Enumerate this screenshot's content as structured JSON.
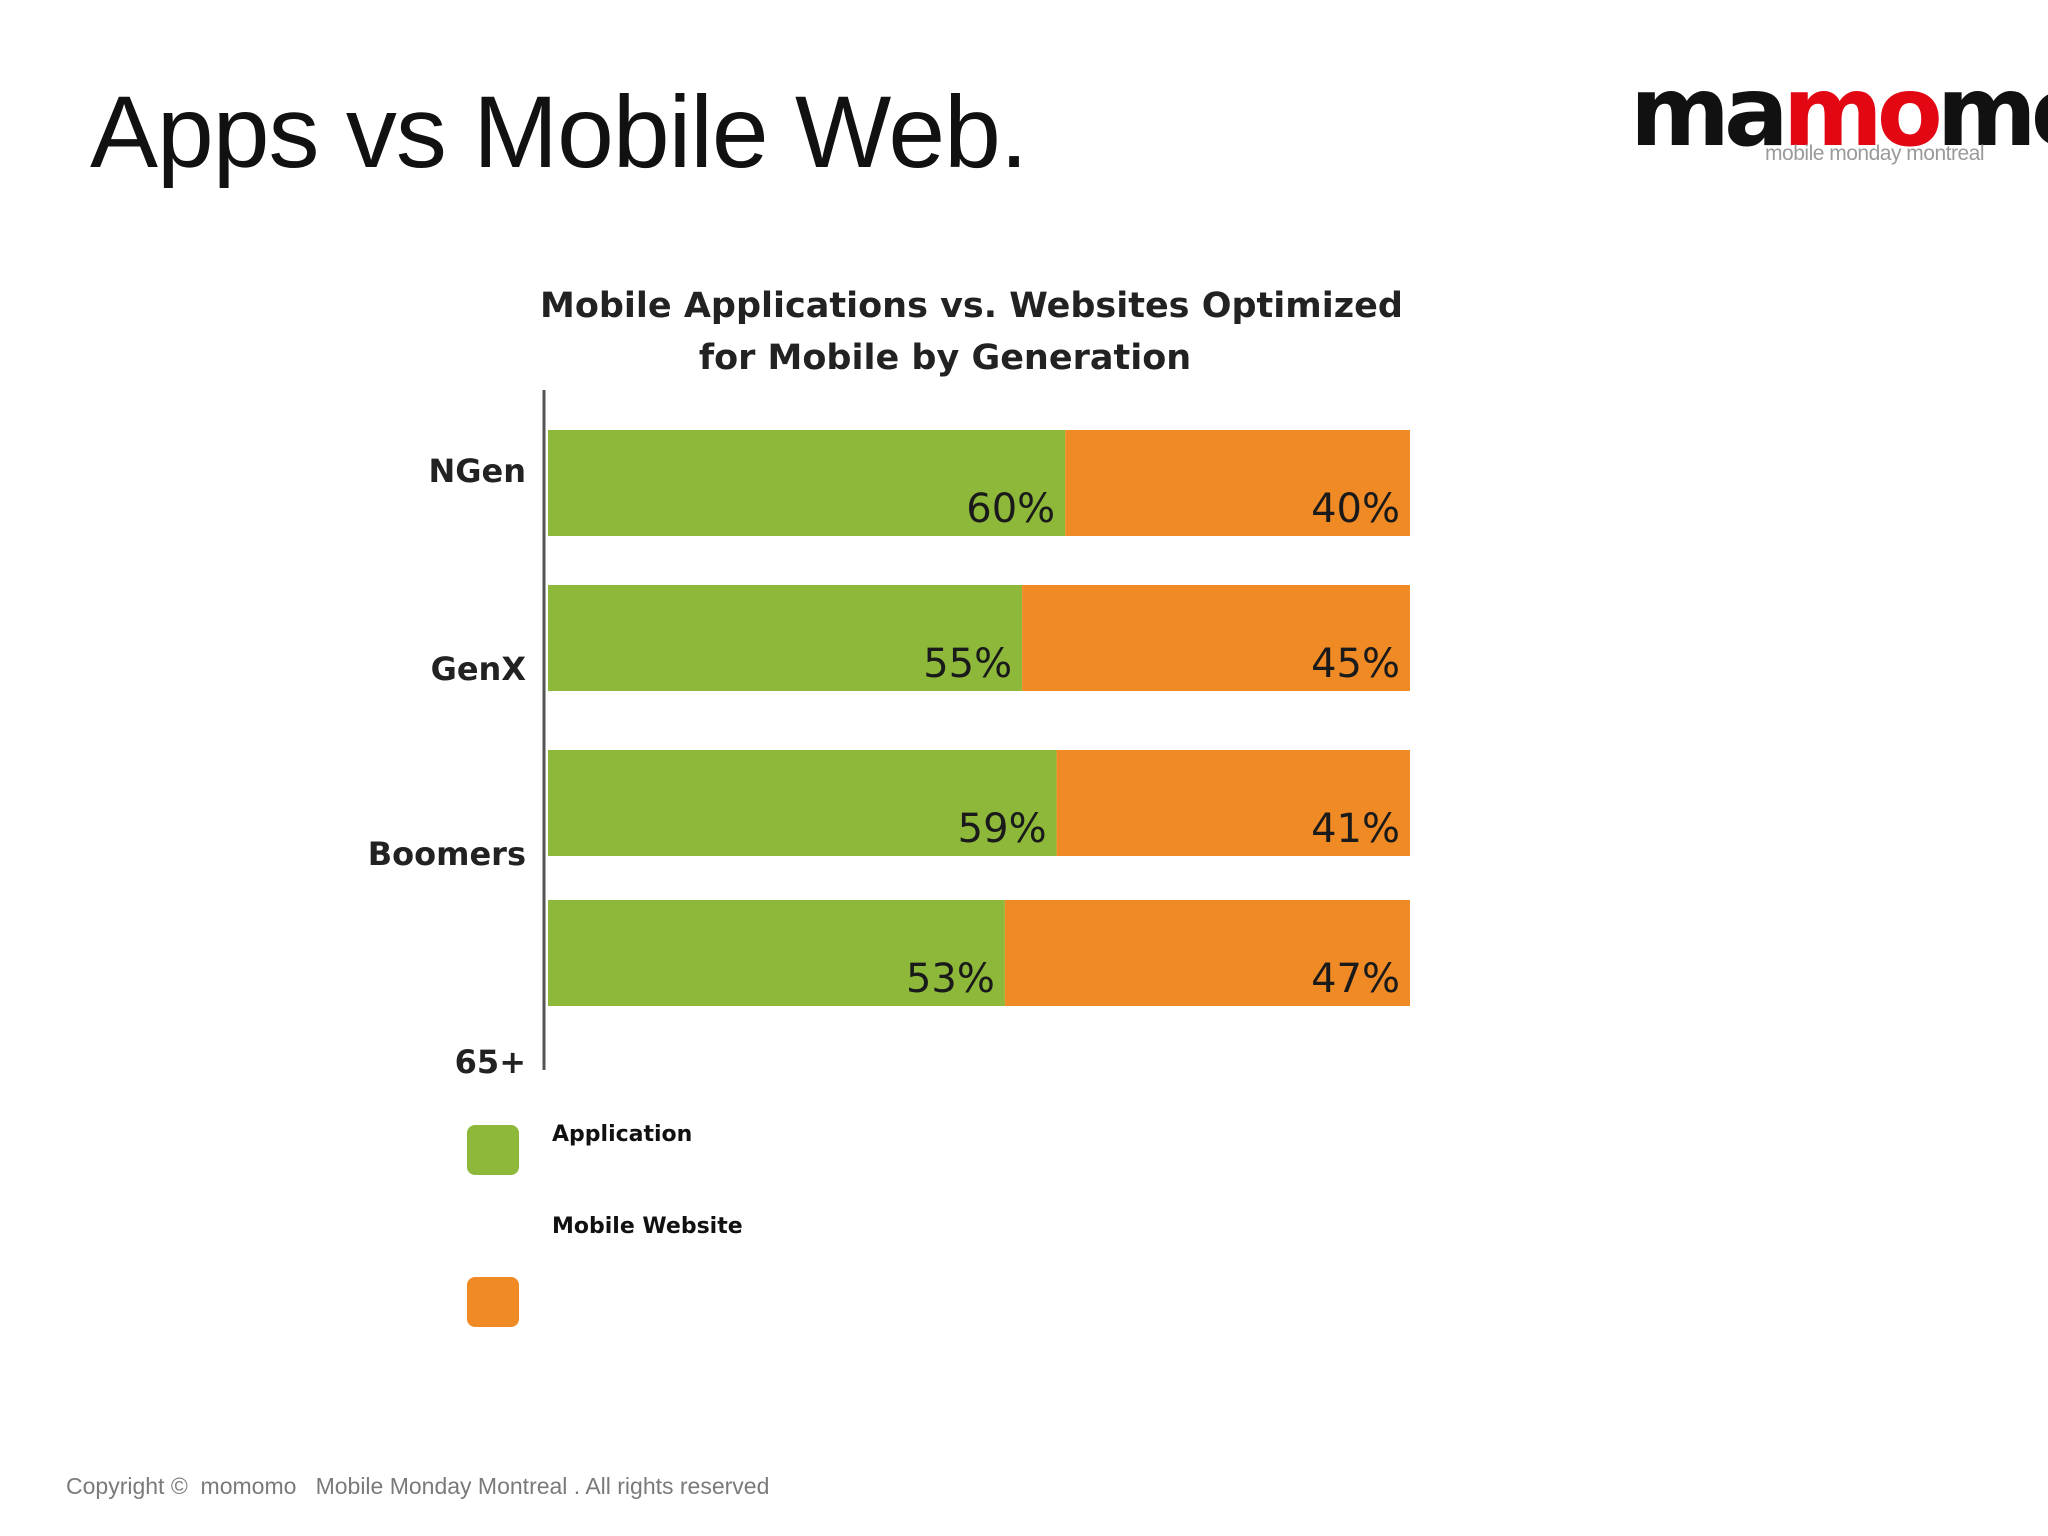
{
  "slide": {
    "title": "Apps vs Mobile Web.",
    "footer": "Copyright ©  momomo   Mobile Monday Montreal . All rights reserved"
  },
  "logo": {
    "word_part1": "ma",
    "word_o": "mo",
    "word_part2": "mo",
    "tagline": "mobile monday montreal"
  },
  "colors": {
    "application": "#8db83a",
    "mobile_website": "#f08a24",
    "axis": "#555555",
    "logo_accent": "#e30613"
  },
  "chart_data": {
    "type": "bar",
    "orientation": "horizontal",
    "stacked": true,
    "title_lines": [
      "Mobile Applications vs. Websites Optimized",
      "for Mobile by Generation"
    ],
    "categories": [
      "NGen",
      "GenX",
      "Boomers",
      "65+"
    ],
    "series": [
      {
        "name": "Application",
        "values": [
          60,
          55,
          59,
          53
        ],
        "labels": [
          "60%",
          "55%",
          "59%",
          "53%"
        ]
      },
      {
        "name": "Mobile Website",
        "values": [
          40,
          45,
          41,
          47
        ],
        "labels": [
          "40%",
          "45%",
          "41%",
          "47%"
        ]
      }
    ],
    "xlim": [
      0,
      100
    ],
    "grid": false,
    "legend_position": "bottom-left"
  }
}
